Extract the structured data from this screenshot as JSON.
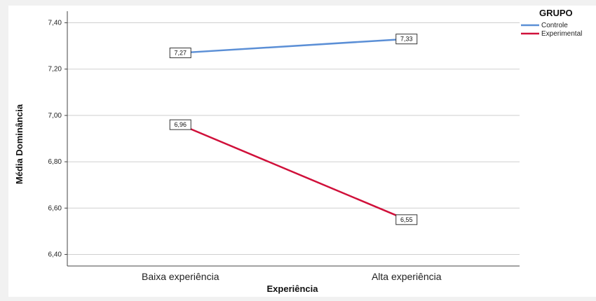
{
  "chart_data": {
    "type": "line",
    "title": "",
    "xlabel": "Experiência",
    "ylabel": "Média Dominância",
    "categories": [
      "Baixa experiência",
      "Alta experiência"
    ],
    "ylim": [
      6.35,
      7.45
    ],
    "yticks": [
      6.4,
      6.6,
      6.8,
      7.0,
      7.2,
      7.4
    ],
    "ytick_labels": [
      "6,40",
      "6,60",
      "6,80",
      "7,00",
      "7,20",
      "7,40"
    ],
    "grid": "horizontal",
    "legend": {
      "title": "GRUPO",
      "position": "top-right"
    },
    "series": [
      {
        "name": "Controle",
        "color": "#5b8fd6",
        "values": [
          7.27,
          7.33
        ],
        "labels": [
          "7,27",
          "7,33"
        ]
      },
      {
        "name": "Experimental",
        "color": "#d0103a",
        "values": [
          6.96,
          6.55
        ],
        "labels": [
          "6,96",
          "6,55"
        ]
      }
    ]
  }
}
